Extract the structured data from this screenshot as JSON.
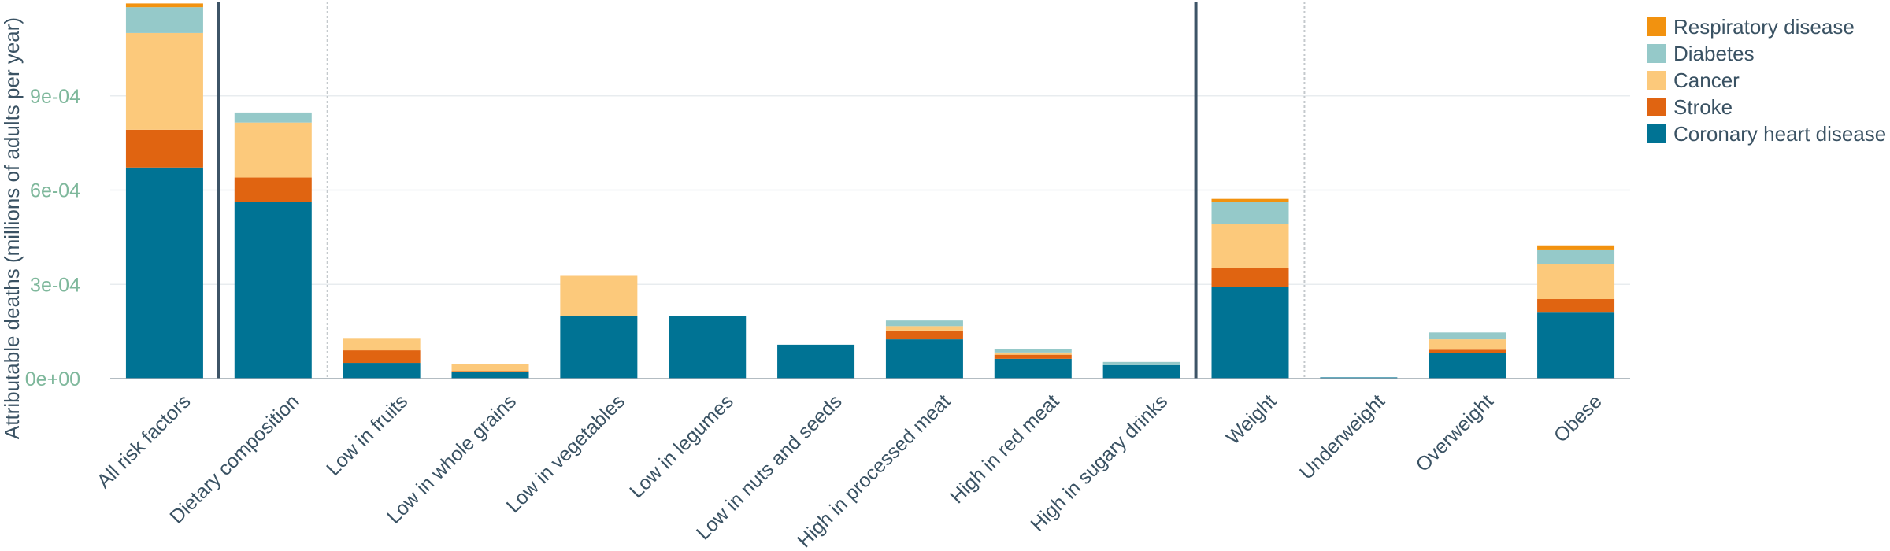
{
  "chart_data": {
    "type": "bar",
    "stacked": true,
    "title": "",
    "xlabel": "",
    "ylabel": "Attributable deaths (millions of adults per year)",
    "ylim": [
      0,
      0.00119
    ],
    "yticks": [
      {
        "value": 0,
        "label": "0e+00"
      },
      {
        "value": 0.0003,
        "label": "3e-04"
      },
      {
        "value": 0.0006,
        "label": "6e-04"
      },
      {
        "value": 0.0009,
        "label": "9e-04"
      }
    ],
    "grid": true,
    "legend_position": "top-right",
    "categories": [
      "All risk factors",
      "Dietary composition",
      "Low in fruits",
      "Low in whole grains",
      "Low in vegetables",
      "Low in legumes",
      "Low in nuts and seeds",
      "High in processed meat",
      "High in red meat",
      "High in sugary drinks",
      "Weight",
      "Underweight",
      "Overweight",
      "Obese"
    ],
    "series": [
      {
        "name": "Coronary heart disease",
        "color": "#007394",
        "values": [
          0.000672,
          0.000563,
          5e-05,
          2.2e-05,
          0.0002,
          0.0002,
          0.000108,
          0.000125,
          6.3e-05,
          4.3e-05,
          0.000293,
          4e-06,
          8.2e-05,
          0.00021
        ]
      },
      {
        "name": "Stroke",
        "color": "#e06411",
        "values": [
          0.00012,
          7.7e-05,
          4e-05,
          2e-06,
          0,
          0,
          0,
          2.8e-05,
          1.3e-05,
          0,
          6e-05,
          0,
          1e-05,
          4.3e-05
        ]
      },
      {
        "name": "Cancer",
        "color": "#fcc97b",
        "values": [
          0.000308,
          0.000175,
          3.7e-05,
          2.3e-05,
          0.000127,
          0,
          0,
          1.4e-05,
          7e-06,
          0,
          0.000139,
          0,
          3.3e-05,
          0.000112
        ]
      },
      {
        "name": "Diabetes",
        "color": "#95c9c9",
        "values": [
          8.2e-05,
          3.2e-05,
          0,
          0,
          0,
          0,
          0,
          1.8e-05,
          1.2e-05,
          1e-05,
          7e-05,
          0,
          2.2e-05,
          4.6e-05
        ]
      },
      {
        "name": "Respiratory disease",
        "color": "#f2920f",
        "values": [
          1.2e-05,
          0,
          0,
          0,
          0,
          0,
          0,
          0,
          0,
          0,
          1e-05,
          0,
          0,
          1.3e-05
        ]
      }
    ],
    "separators": [
      {
        "after_index": 0,
        "style": "solid"
      },
      {
        "after_index": 1,
        "style": "dotted"
      },
      {
        "after_index": 9,
        "style": "solid"
      },
      {
        "after_index": 10,
        "style": "dotted"
      }
    ],
    "legend_order": [
      "Respiratory disease",
      "Diabetes",
      "Cancer",
      "Stroke",
      "Coronary heart disease"
    ]
  }
}
